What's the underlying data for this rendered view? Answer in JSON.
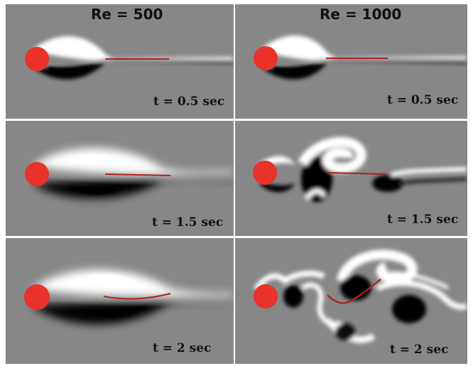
{
  "columns": [
    {
      "title": "Re = 500"
    },
    {
      "title": "Re = 1000"
    }
  ],
  "panels": [
    {
      "time_label": "t = 0.5 sec"
    },
    {
      "time_label": "t = 0.5 sec"
    },
    {
      "time_label": "t = 1.5 sec"
    },
    {
      "time_label": "t = 1.5 sec"
    },
    {
      "time_label": "t = 2 sec"
    },
    {
      "time_label": "t = 2 sec"
    }
  ],
  "colors": {
    "background_field": "#878787",
    "cylinder": "#e8322a",
    "filament": "#b0201c",
    "vorticity_positive": "#ffffff",
    "vorticity_negative": "#000000"
  }
}
